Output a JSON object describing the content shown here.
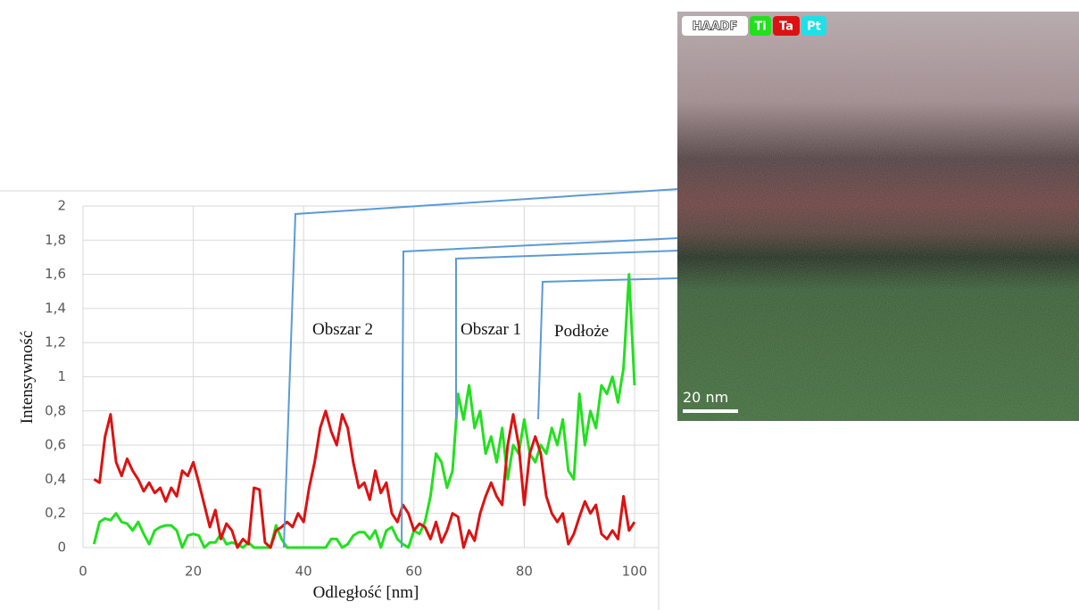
{
  "chart_data": {
    "type": "line",
    "x_label": "Odległość [nm]",
    "y_label": "Intensywność",
    "x": [
      2,
      3,
      4,
      5,
      6,
      7,
      8,
      9,
      10,
      11,
      12,
      13,
      14,
      15,
      16,
      17,
      18,
      19,
      20,
      21,
      22,
      23,
      24,
      25,
      26,
      27,
      28,
      29,
      30,
      31,
      32,
      33,
      34,
      35,
      36,
      37,
      38,
      39,
      40,
      41,
      42,
      43,
      44,
      45,
      46,
      47,
      48,
      49,
      50,
      51,
      52,
      53,
      54,
      55,
      56,
      57,
      58,
      59,
      60,
      61,
      62,
      63,
      64,
      65,
      66,
      67,
      68,
      69,
      70,
      71,
      72,
      73,
      74,
      75,
      76,
      77,
      78,
      79,
      80,
      81,
      82,
      83,
      84,
      85,
      86,
      87,
      88,
      89,
      90,
      91,
      92,
      93,
      94,
      95,
      96,
      97,
      98,
      99,
      100
    ],
    "series": [
      {
        "name": "Ti",
        "color": "#22e01e",
        "values": [
          0.02,
          0.15,
          0.17,
          0.16,
          0.2,
          0.15,
          0.14,
          0.1,
          0.15,
          0.08,
          0.02,
          0.1,
          0.12,
          0.13,
          0.13,
          0.1,
          0,
          0.07,
          0.08,
          0.07,
          0,
          0.03,
          0.03,
          0.08,
          0.02,
          0.03,
          0.02,
          0,
          0.03,
          0,
          0,
          0,
          0,
          0.13,
          0.05,
          0,
          0,
          0,
          0,
          0,
          0,
          0,
          0,
          0.05,
          0.05,
          0,
          0.02,
          0.07,
          0.09,
          0.09,
          0.05,
          0.1,
          0,
          0.1,
          0.12,
          0.05,
          0.02,
          0,
          0.1,
          0.08,
          0.15,
          0.3,
          0.55,
          0.5,
          0.35,
          0.45,
          0.9,
          0.75,
          0.95,
          0.7,
          0.8,
          0.55,
          0.65,
          0.5,
          0.7,
          0.4,
          0.6,
          0.55,
          0.75,
          0.55,
          0.5,
          0.6,
          0.55,
          0.7,
          0.6,
          0.75,
          0.45,
          0.4,
          0.9,
          0.6,
          0.8,
          0.7,
          0.95,
          0.9,
          1.0,
          0.85,
          1.05,
          1.6,
          0.95
        ]
      },
      {
        "name": "Ta",
        "color": "#dc1212",
        "values": [
          0.4,
          0.38,
          0.65,
          0.78,
          0.5,
          0.42,
          0.52,
          0.45,
          0.4,
          0.33,
          0.38,
          0.32,
          0.35,
          0.27,
          0.35,
          0.3,
          0.45,
          0.42,
          0.5,
          0.38,
          0.25,
          0.12,
          0.22,
          0.05,
          0.14,
          0.1,
          0,
          0.05,
          0.02,
          0.35,
          0.34,
          0.03,
          0,
          0.1,
          0.12,
          0.15,
          0.12,
          0.2,
          0.15,
          0.35,
          0.5,
          0.7,
          0.8,
          0.68,
          0.6,
          0.78,
          0.7,
          0.5,
          0.35,
          0.38,
          0.28,
          0.45,
          0.32,
          0.38,
          0.2,
          0.15,
          0.25,
          0.2,
          0.1,
          0.14,
          0.12,
          0.05,
          0.15,
          0.03,
          0.1,
          0.2,
          0.18,
          0,
          0.1,
          0.04,
          0.2,
          0.3,
          0.38,
          0.3,
          0.25,
          0.6,
          0.78,
          0.6,
          0.25,
          0.55,
          0.65,
          0.55,
          0.3,
          0.2,
          0.15,
          0.2,
          0.02,
          0.08,
          0.18,
          0.27,
          0.2,
          0.25,
          0.08,
          0.05,
          0.1,
          0.05,
          0.3,
          0.1,
          0.15
        ]
      }
    ],
    "xlim": [
      0,
      100
    ],
    "xticks": [
      0,
      20,
      40,
      60,
      80,
      100
    ],
    "ylim": [
      0,
      2
    ],
    "yticks": [
      0,
      {
        "value": 0.2,
        "label": "0,2"
      },
      {
        "value": 0.4,
        "label": "0,4"
      },
      {
        "value": 0.6,
        "label": "0,6"
      },
      {
        "value": 0.8,
        "label": "0,8"
      },
      1,
      {
        "value": 1.2,
        "label": "1,2"
      },
      {
        "value": 1.4,
        "label": "1,4"
      },
      {
        "value": 1.6,
        "label": "1,6"
      },
      {
        "value": 1.8,
        "label": "1,8"
      },
      2
    ],
    "grid": true,
    "annotations": [
      "Obszar 2",
      "Obszar 1",
      "Podłoże"
    ],
    "image_labels": {
      "haadf": "HAADF",
      "pt": "Pt",
      "scale": "20 nm"
    }
  }
}
